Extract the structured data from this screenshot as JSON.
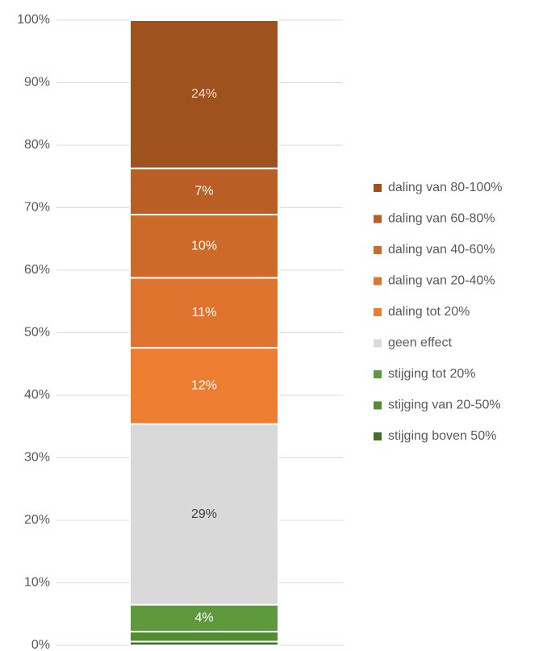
{
  "chart_data": {
    "type": "stacked_bar",
    "categories": [
      null
    ],
    "series": [
      {
        "name": "stijging boven 50%",
        "color": "#40702a",
        "values": [
          0.6
        ],
        "value_labels": [
          null
        ]
      },
      {
        "name": "stijging van 20-50%",
        "color": "#548c33",
        "values": [
          1.6
        ],
        "value_labels": [
          null
        ]
      },
      {
        "name": "stijging tot 20%",
        "color": "#5f993d",
        "values": [
          4.3
        ],
        "value_labels": [
          "4%"
        ]
      },
      {
        "name": "geen effect",
        "color": "#d9d9d9",
        "values": [
          28.9
        ],
        "value_labels": [
          "29%"
        ]
      },
      {
        "name": "daling tot 20%",
        "color": "#ed7d31",
        "values": [
          12.2
        ],
        "value_labels": [
          "12%"
        ]
      },
      {
        "name": "daling van 20-40%",
        "color": "#df742e",
        "values": [
          11.2
        ],
        "value_labels": [
          "11%"
        ]
      },
      {
        "name": "daling van 40-60%",
        "color": "#cd6a2a",
        "values": [
          10.1
        ],
        "value_labels": [
          "10%"
        ]
      },
      {
        "name": "daling van 60-80%",
        "color": "#ba5e25",
        "values": [
          7.4
        ],
        "value_labels": [
          "7%"
        ]
      },
      {
        "name": "daling van 80-100%",
        "color": "#a0521e",
        "values": [
          23.7
        ],
        "value_labels": [
          "24%"
        ]
      }
    ],
    "ylim": [
      0,
      100
    ],
    "yticks": [
      {
        "value": 0,
        "label": "0%"
      },
      {
        "value": 10,
        "label": "10%"
      },
      {
        "value": 20,
        "label": "20%"
      },
      {
        "value": 30,
        "label": "30%"
      },
      {
        "value": 40,
        "label": "40%"
      },
      {
        "value": 50,
        "label": "50%"
      },
      {
        "value": 60,
        "label": "60%"
      },
      {
        "value": 70,
        "label": "70%"
      },
      {
        "value": 80,
        "label": "80%"
      },
      {
        "value": 90,
        "label": "90%"
      },
      {
        "value": 100,
        "label": "100%"
      }
    ],
    "grid": true,
    "legend": "right"
  }
}
